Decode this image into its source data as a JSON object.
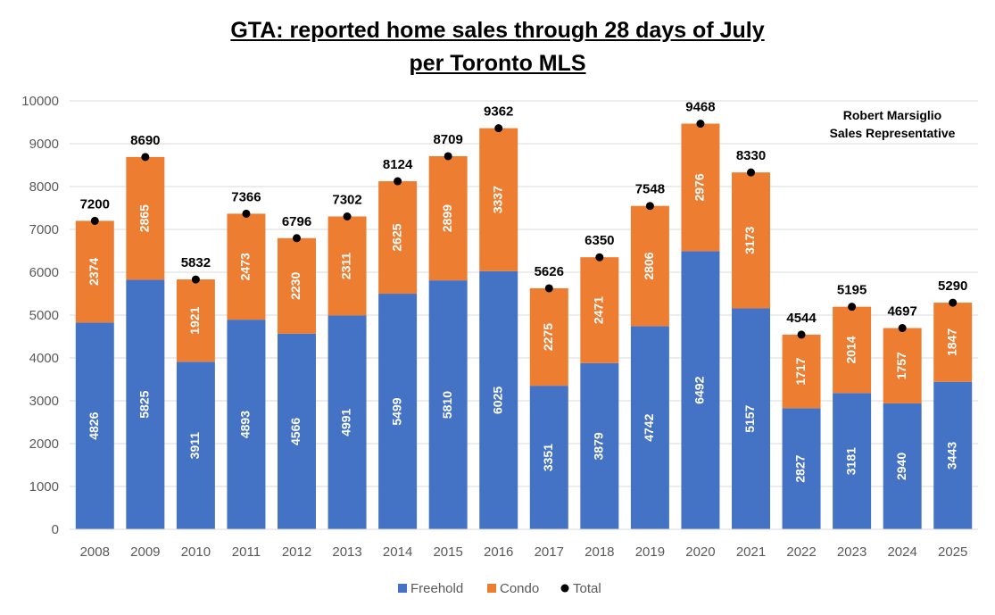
{
  "chart_data": {
    "type": "bar",
    "stacked": true,
    "title_lines": [
      "GTA: reported home sales through 28 days of July",
      "per Toronto MLS"
    ],
    "annotation_lines": [
      "Robert Marsiglio",
      "Sales Representative"
    ],
    "categories": [
      "2008",
      "2009",
      "2010",
      "2011",
      "2012",
      "2013",
      "2014",
      "2015",
      "2016",
      "2017",
      "2018",
      "2019",
      "2020",
      "2021",
      "2022",
      "2023",
      "2024",
      "2025"
    ],
    "series": [
      {
        "name": "Freehold",
        "color": "#4472C4",
        "values": [
          4826,
          5825,
          3911,
          4893,
          4566,
          4991,
          5499,
          5810,
          6025,
          3351,
          3879,
          4742,
          6492,
          5157,
          2827,
          3181,
          2940,
          3443
        ]
      },
      {
        "name": "Condo",
        "color": "#ED7D31",
        "values": [
          2374,
          2865,
          1921,
          2473,
          2230,
          2311,
          2625,
          2899,
          3337,
          2275,
          2471,
          2806,
          2976,
          3173,
          1717,
          2014,
          1757,
          1847
        ]
      },
      {
        "name": "Total",
        "color": "#000000",
        "marker": "dot",
        "values": [
          7200,
          8690,
          5832,
          7366,
          6796,
          7302,
          8124,
          8709,
          9362,
          5626,
          6350,
          7548,
          9468,
          8330,
          4544,
          5195,
          4697,
          5290
        ]
      }
    ],
    "ylim": [
      0,
      10000
    ],
    "yticks": [
      0,
      1000,
      2000,
      3000,
      4000,
      5000,
      6000,
      7000,
      8000,
      9000,
      10000
    ],
    "grid": true,
    "legend_position": "bottom",
    "xlabel": "",
    "ylabel": ""
  }
}
